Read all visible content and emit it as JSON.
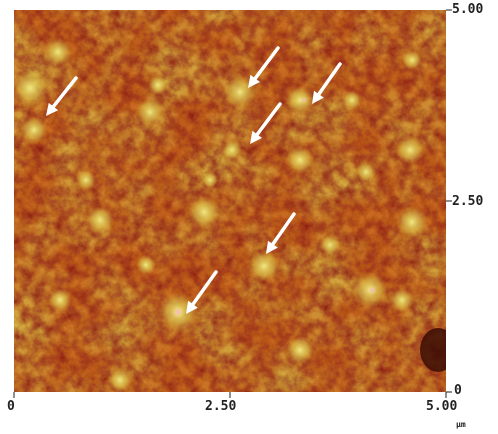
{
  "image": {
    "description_colors": {
      "dark": "#8a1a10",
      "mid": "#c8621c",
      "light": "#d9b53a",
      "highlight": "#e8e070",
      "peak": "#f2a0c8",
      "arrow": "#ffffff"
    }
  },
  "axes": {
    "x_ticks": [
      "0",
      "2.50",
      "5.00"
    ],
    "y_ticks": [
      "5.00",
      "2.50",
      "0"
    ],
    "unit": "µm"
  },
  "arrows": [
    {
      "name": "arrow-1"
    },
    {
      "name": "arrow-2"
    },
    {
      "name": "arrow-3"
    },
    {
      "name": "arrow-4"
    },
    {
      "name": "arrow-5"
    },
    {
      "name": "arrow-6"
    }
  ]
}
